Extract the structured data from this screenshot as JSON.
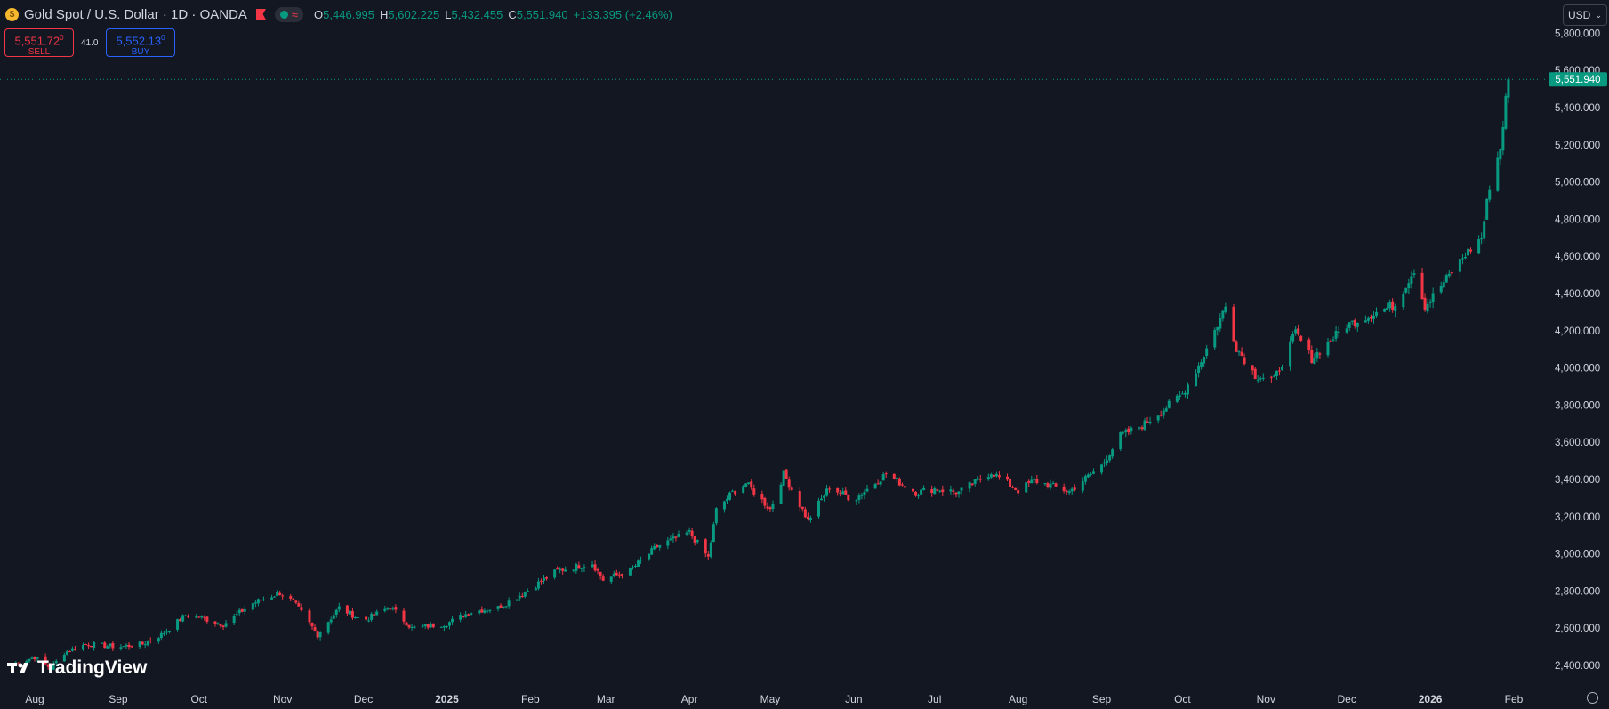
{
  "header": {
    "symbol": "Gold Spot / U.S. Dollar · 1D · OANDA",
    "coin_icon": "gold-coin-icon",
    "flag_icon": "flag-icon",
    "status_icon": "market-open-dot-icon",
    "wave_icon": "wave-icon",
    "ohlc": {
      "o_label": "O",
      "o": "5,446.995",
      "h_label": "H",
      "h": "5,602.225",
      "l_label": "L",
      "l": "5,432.455",
      "c_label": "C",
      "c": "5,551.940",
      "change": "+133.395 (+2.46%)"
    }
  },
  "trade": {
    "sell_price": "5,551.72",
    "sell_sup": "0",
    "sell_label": "SELL",
    "spread": "41.0",
    "buy_price": "5,552.13",
    "buy_sup": "0",
    "buy_label": "BUY"
  },
  "currency_select": "USD",
  "logo": "TradingView",
  "colors": {
    "background": "#131722",
    "up": "#089981",
    "down": "#f23645",
    "text": "#d1d4dc"
  },
  "chart_data": {
    "type": "candlestick",
    "last_price": 5551.94,
    "last_price_label": "5,551.940",
    "y_ticks": [
      2400,
      2600,
      2800,
      3000,
      3200,
      3400,
      3600,
      3800,
      4000,
      4200,
      4400,
      4600,
      4800,
      5000,
      5200,
      5400,
      5600,
      5800
    ],
    "y_tick_labels": [
      "2,400.000",
      "2,600.000",
      "2,800.000",
      "3,000.000",
      "3,200.000",
      "3,400.000",
      "3,600.000",
      "3,800.000",
      "4,000.000",
      "4,200.000",
      "4,400.000",
      "4,600.000",
      "4,800.000",
      "5,000.000",
      "5,200.000",
      "5,400.000",
      "5,600.000",
      "5,800.000"
    ],
    "x_ticks": [
      {
        "label": "Aug",
        "date": "2024-08-01",
        "bold": false
      },
      {
        "label": "Sep",
        "date": "2024-09-01",
        "bold": false
      },
      {
        "label": "Oct",
        "date": "2024-10-01",
        "bold": false
      },
      {
        "label": "Nov",
        "date": "2024-11-01",
        "bold": false
      },
      {
        "label": "Dec",
        "date": "2024-12-01",
        "bold": false
      },
      {
        "label": "2025",
        "date": "2025-01-01",
        "bold": true
      },
      {
        "label": "Feb",
        "date": "2025-02-01",
        "bold": false
      },
      {
        "label": "Mar",
        "date": "2025-03-01",
        "bold": false
      },
      {
        "label": "Apr",
        "date": "2025-04-01",
        "bold": false
      },
      {
        "label": "May",
        "date": "2025-05-01",
        "bold": false
      },
      {
        "label": "Jun",
        "date": "2025-06-01",
        "bold": false
      },
      {
        "label": "Jul",
        "date": "2025-07-01",
        "bold": false
      },
      {
        "label": "Aug",
        "date": "2025-08-01",
        "bold": false
      },
      {
        "label": "Sep",
        "date": "2025-09-01",
        "bold": false
      },
      {
        "label": "Oct",
        "date": "2025-10-01",
        "bold": false
      },
      {
        "label": "Nov",
        "date": "2025-11-01",
        "bold": false
      },
      {
        "label": "Dec",
        "date": "2025-12-01",
        "bold": false
      },
      {
        "label": "2026",
        "date": "2026-01-01",
        "bold": true
      },
      {
        "label": "Feb",
        "date": "2026-02-01",
        "bold": false
      }
    ],
    "series": [
      {
        "date": "2024-07-24",
        "close": 2410
      },
      {
        "date": "2024-08-01",
        "close": 2445
      },
      {
        "date": "2024-08-07",
        "close": 2385
      },
      {
        "date": "2024-08-12",
        "close": 2470
      },
      {
        "date": "2024-08-20",
        "close": 2515
      },
      {
        "date": "2024-09-01",
        "close": 2500
      },
      {
        "date": "2024-09-10",
        "close": 2515
      },
      {
        "date": "2024-09-17",
        "close": 2565
      },
      {
        "date": "2024-09-26",
        "close": 2670
      },
      {
        "date": "2024-10-01",
        "close": 2660
      },
      {
        "date": "2024-10-10",
        "close": 2620
      },
      {
        "date": "2024-10-21",
        "close": 2735
      },
      {
        "date": "2024-10-31",
        "close": 2790
      },
      {
        "date": "2024-11-05",
        "close": 2740
      },
      {
        "date": "2024-11-08",
        "close": 2685
      },
      {
        "date": "2024-11-14",
        "close": 2565
      },
      {
        "date": "2024-11-22",
        "close": 2710
      },
      {
        "date": "2024-12-01",
        "close": 2640
      },
      {
        "date": "2024-12-11",
        "close": 2715
      },
      {
        "date": "2024-12-19",
        "close": 2600
      },
      {
        "date": "2025-01-01",
        "close": 2625
      },
      {
        "date": "2025-01-10",
        "close": 2690
      },
      {
        "date": "2025-01-20",
        "close": 2710
      },
      {
        "date": "2025-01-30",
        "close": 2795
      },
      {
        "date": "2025-02-11",
        "close": 2910
      },
      {
        "date": "2025-02-24",
        "close": 2950
      },
      {
        "date": "2025-02-28",
        "close": 2860
      },
      {
        "date": "2025-03-10",
        "close": 2910
      },
      {
        "date": "2025-03-20",
        "close": 3040
      },
      {
        "date": "2025-04-01",
        "close": 3115
      },
      {
        "date": "2025-04-08",
        "close": 2980
      },
      {
        "date": "2025-04-11",
        "close": 3235
      },
      {
        "date": "2025-04-17",
        "close": 3330
      },
      {
        "date": "2025-04-22",
        "close": 3380
      },
      {
        "date": "2025-05-01",
        "close": 3240
      },
      {
        "date": "2025-05-06",
        "close": 3430
      },
      {
        "date": "2025-05-15",
        "close": 3180
      },
      {
        "date": "2025-05-23",
        "close": 3360
      },
      {
        "date": "2025-06-01",
        "close": 3290
      },
      {
        "date": "2025-06-13",
        "close": 3430
      },
      {
        "date": "2025-06-24",
        "close": 3330
      },
      {
        "date": "2025-07-01",
        "close": 3350
      },
      {
        "date": "2025-07-10",
        "close": 3330
      },
      {
        "date": "2025-07-22",
        "close": 3440
      },
      {
        "date": "2025-08-01",
        "close": 3340
      },
      {
        "date": "2025-08-07",
        "close": 3395
      },
      {
        "date": "2025-08-20",
        "close": 3335
      },
      {
        "date": "2025-09-01",
        "close": 3475
      },
      {
        "date": "2025-09-08",
        "close": 3635
      },
      {
        "date": "2025-09-16",
        "close": 3690
      },
      {
        "date": "2025-09-23",
        "close": 3765
      },
      {
        "date": "2025-10-01",
        "close": 3860
      },
      {
        "date": "2025-10-08",
        "close": 4040
      },
      {
        "date": "2025-10-17",
        "close": 4330
      },
      {
        "date": "2025-10-21",
        "close": 4110
      },
      {
        "date": "2025-10-28",
        "close": 3960
      },
      {
        "date": "2025-11-04",
        "close": 3935
      },
      {
        "date": "2025-11-12",
        "close": 4190
      },
      {
        "date": "2025-11-18",
        "close": 4050
      },
      {
        "date": "2025-11-25",
        "close": 4150
      },
      {
        "date": "2025-12-01",
        "close": 4230
      },
      {
        "date": "2025-12-12",
        "close": 4300
      },
      {
        "date": "2025-12-19",
        "close": 4340
      },
      {
        "date": "2025-12-26",
        "close": 4530
      },
      {
        "date": "2025-12-30",
        "close": 4330
      },
      {
        "date": "2026-01-06",
        "close": 4460
      },
      {
        "date": "2026-01-14",
        "close": 4610
      },
      {
        "date": "2026-01-20",
        "close": 4700
      },
      {
        "date": "2026-01-23",
        "close": 4980
      },
      {
        "date": "2026-01-27",
        "close": 5180
      },
      {
        "date": "2026-01-29",
        "close": 5445
      },
      {
        "date": "2026-01-30",
        "close": 5552
      }
    ]
  }
}
